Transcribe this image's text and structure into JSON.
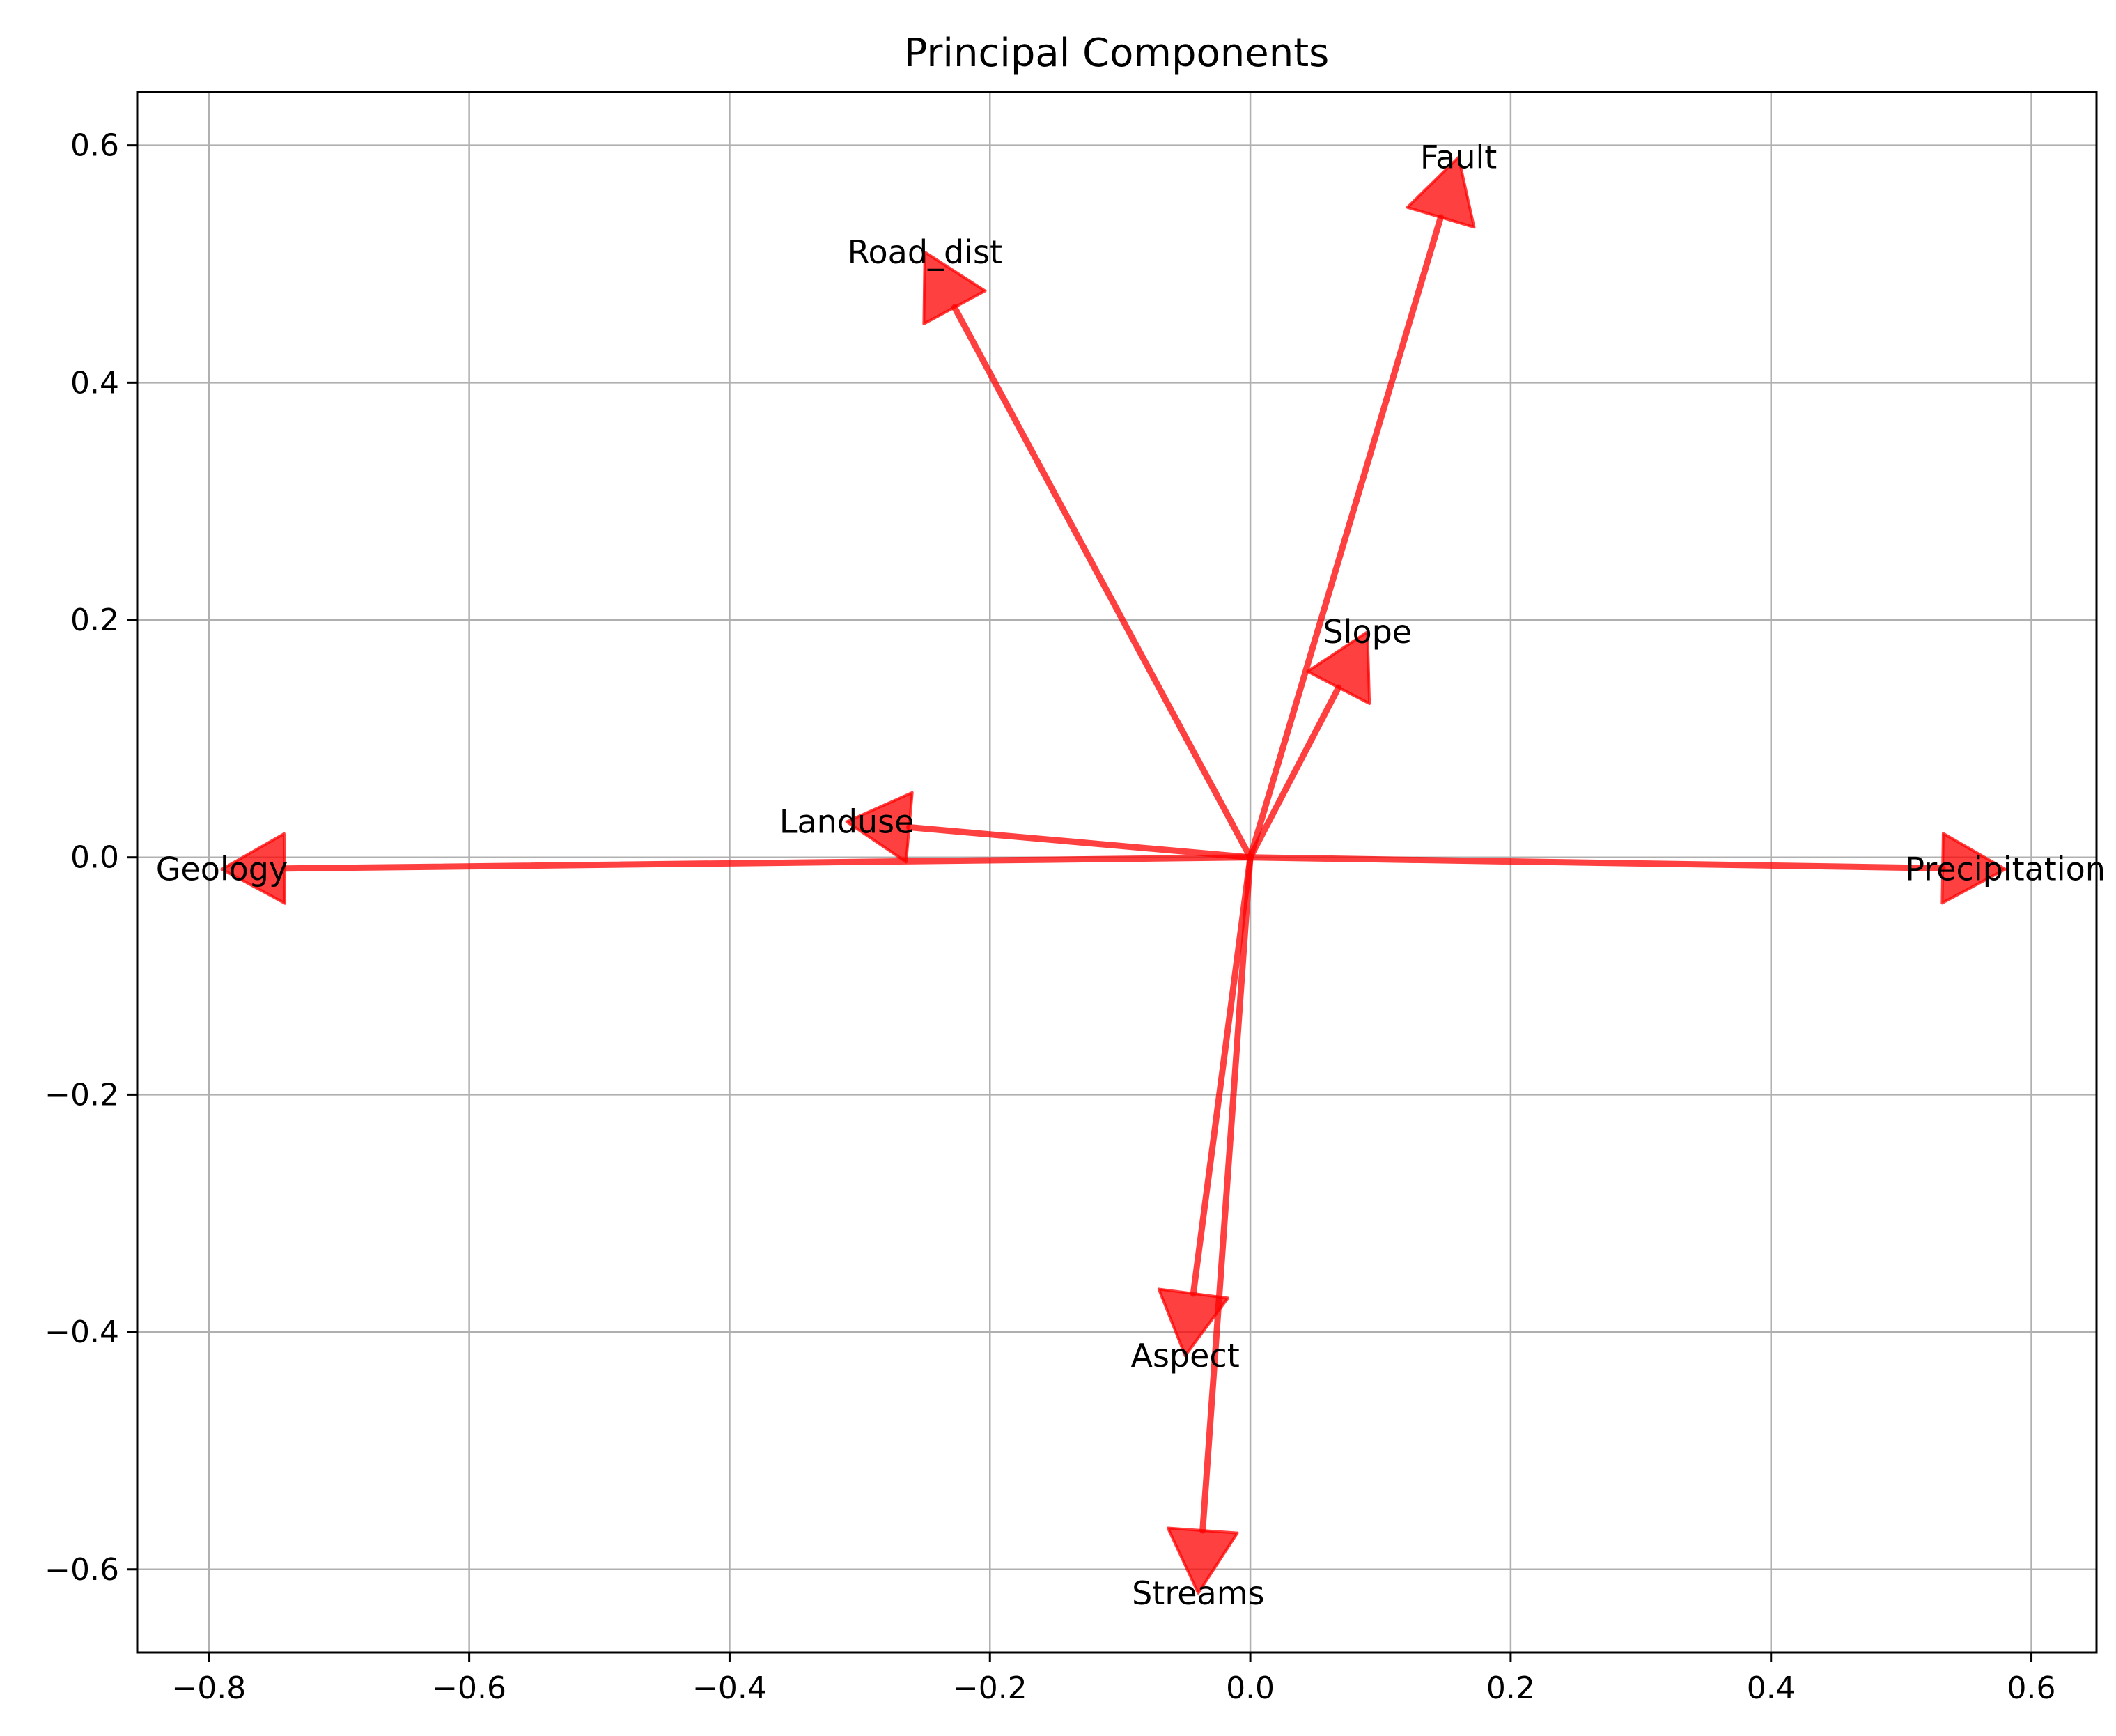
{
  "chart_data": {
    "type": "vector",
    "title": "Principal Components",
    "xlabel": "",
    "ylabel": "",
    "xlim": [
      -0.855,
      0.65
    ],
    "ylim": [
      -0.67,
      0.645
    ],
    "xticks": [
      -0.8,
      -0.6,
      -0.4,
      -0.2,
      0.0,
      0.2,
      0.4,
      0.6
    ],
    "xtick_labels": [
      "−0.8",
      "−0.6",
      "−0.4",
      "−0.2",
      "0.0",
      "0.2",
      "0.4",
      "0.6"
    ],
    "yticks": [
      0.6,
      0.4,
      0.2,
      0.0,
      -0.2,
      -0.4,
      -0.6
    ],
    "ytick_labels": [
      "0.6",
      "0.4",
      "0.2",
      "0.0",
      "−0.2",
      "−0.4",
      "−0.6"
    ],
    "grid": true,
    "arrow_color": "#ff0000",
    "vectors": [
      {
        "name": "Geology",
        "x": -0.79,
        "y": -0.01
      },
      {
        "name": "Landuse",
        "x": -0.31,
        "y": 0.03
      },
      {
        "name": "Road_dist",
        "x": -0.25,
        "y": 0.51
      },
      {
        "name": "Fault",
        "x": 0.16,
        "y": 0.59
      },
      {
        "name": "Slope",
        "x": 0.09,
        "y": 0.19
      },
      {
        "name": "Precipitation",
        "x": 0.58,
        "y": -0.01
      },
      {
        "name": "Aspect",
        "x": -0.05,
        "y": -0.42
      },
      {
        "name": "Streams",
        "x": -0.04,
        "y": -0.62
      }
    ]
  }
}
